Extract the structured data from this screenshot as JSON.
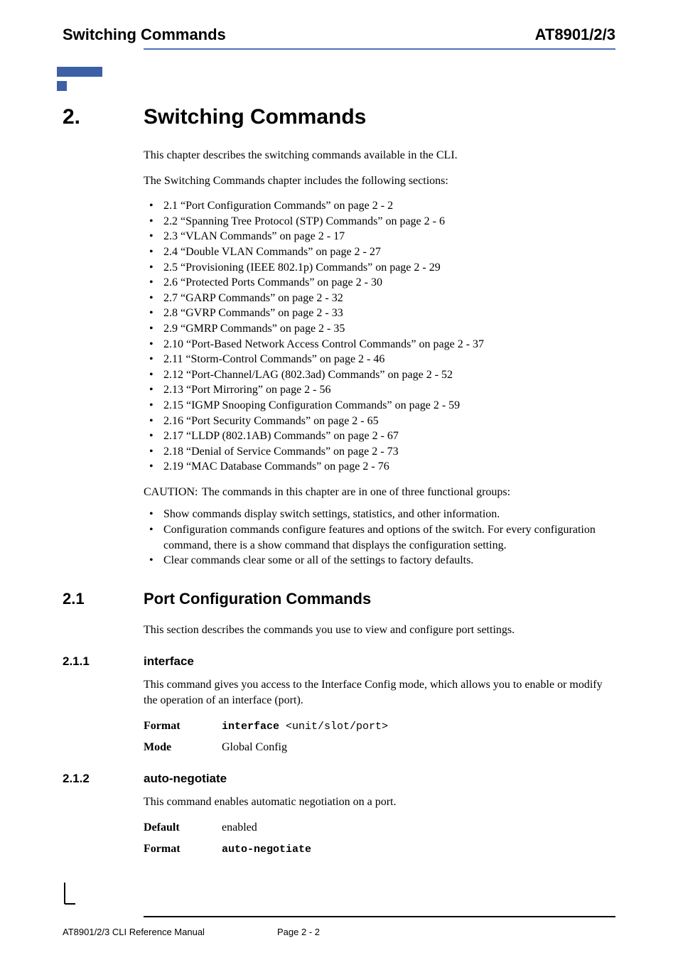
{
  "header": {
    "left": "Switching Commands",
    "right": "AT8901/2/3"
  },
  "logo": {
    "top_color": "#3c5fa5",
    "bottom_color": "#3c5fa5",
    "width": 64,
    "top_height": 14,
    "gap": 6,
    "square": 14
  },
  "chapter": {
    "number": "2.",
    "title": "Switching Commands"
  },
  "intro_paragraphs": [
    "This chapter describes the switching commands available in the CLI.",
    "The Switching Commands chapter includes the following sections:"
  ],
  "toc": [
    "2.1 “Port Configuration Commands” on page 2 - 2",
    "2.2 “Spanning Tree Protocol (STP) Commands” on page 2 - 6",
    "2.3 “VLAN Commands” on page 2 - 17",
    "2.4 “Double VLAN Commands” on page 2 - 27",
    "2.5 “Provisioning (IEEE 802.1p) Commands” on page 2 - 29",
    "2.6 “Protected Ports Commands” on page 2 - 30",
    "2.7 “GARP Commands” on page 2 - 32",
    "2.8 “GVRP Commands” on page 2 - 33",
    "2.9 “GMRP Commands” on page 2 - 35",
    "2.10 “Port-Based Network Access Control Commands” on page 2 - 37",
    "2.11 “Storm-Control Commands” on page 2 - 46",
    "2.12 “Port-Channel/LAG (802.3ad) Commands” on page 2 - 52",
    "2.13 “Port Mirroring” on page 2 - 56",
    "2.15 “IGMP Snooping Configuration Commands” on page 2 - 59",
    "2.16 “Port Security Commands” on page 2 - 65",
    "2.17 “LLDP (802.1AB) Commands” on page 2 - 67",
    "2.18 “Denial of Service Commands” on page 2 - 73",
    "2.19 “MAC Database Commands” on page 2 - 76"
  ],
  "caution": {
    "label": "CAUTION:",
    "text": "The commands in this chapter are in one of three functional groups:"
  },
  "groups": [
    "Show commands display switch settings, statistics, and other information.",
    "Configuration commands configure features and options of the switch. For every configuration command, there is a show command that displays the configuration setting.",
    "Clear commands clear some or all of the settings to factory defaults."
  ],
  "section21": {
    "number": "2.1",
    "title": "Port Configuration Commands",
    "desc": "This section describes the commands you use to view and configure port settings."
  },
  "section211": {
    "number": "2.1.1",
    "title": "interface",
    "desc": "This command gives you access to the Interface Config mode, which allows you to enable or modify the operation of an interface (port).",
    "format_label": "Format",
    "format_cmd": "interface",
    "format_args": " <unit/slot/port>",
    "mode_label": "Mode",
    "mode_value": "Global Config"
  },
  "section212": {
    "number": "2.1.2",
    "title": "auto-negotiate",
    "desc": "This command enables automatic negotiation on a port.",
    "default_label": "Default",
    "default_value": "enabled",
    "format_label": "Format",
    "format_cmd": "auto-negotiate"
  },
  "footer": {
    "left": "AT8901/2/3 CLI Reference Manual",
    "center": "Page 2 - 2"
  }
}
